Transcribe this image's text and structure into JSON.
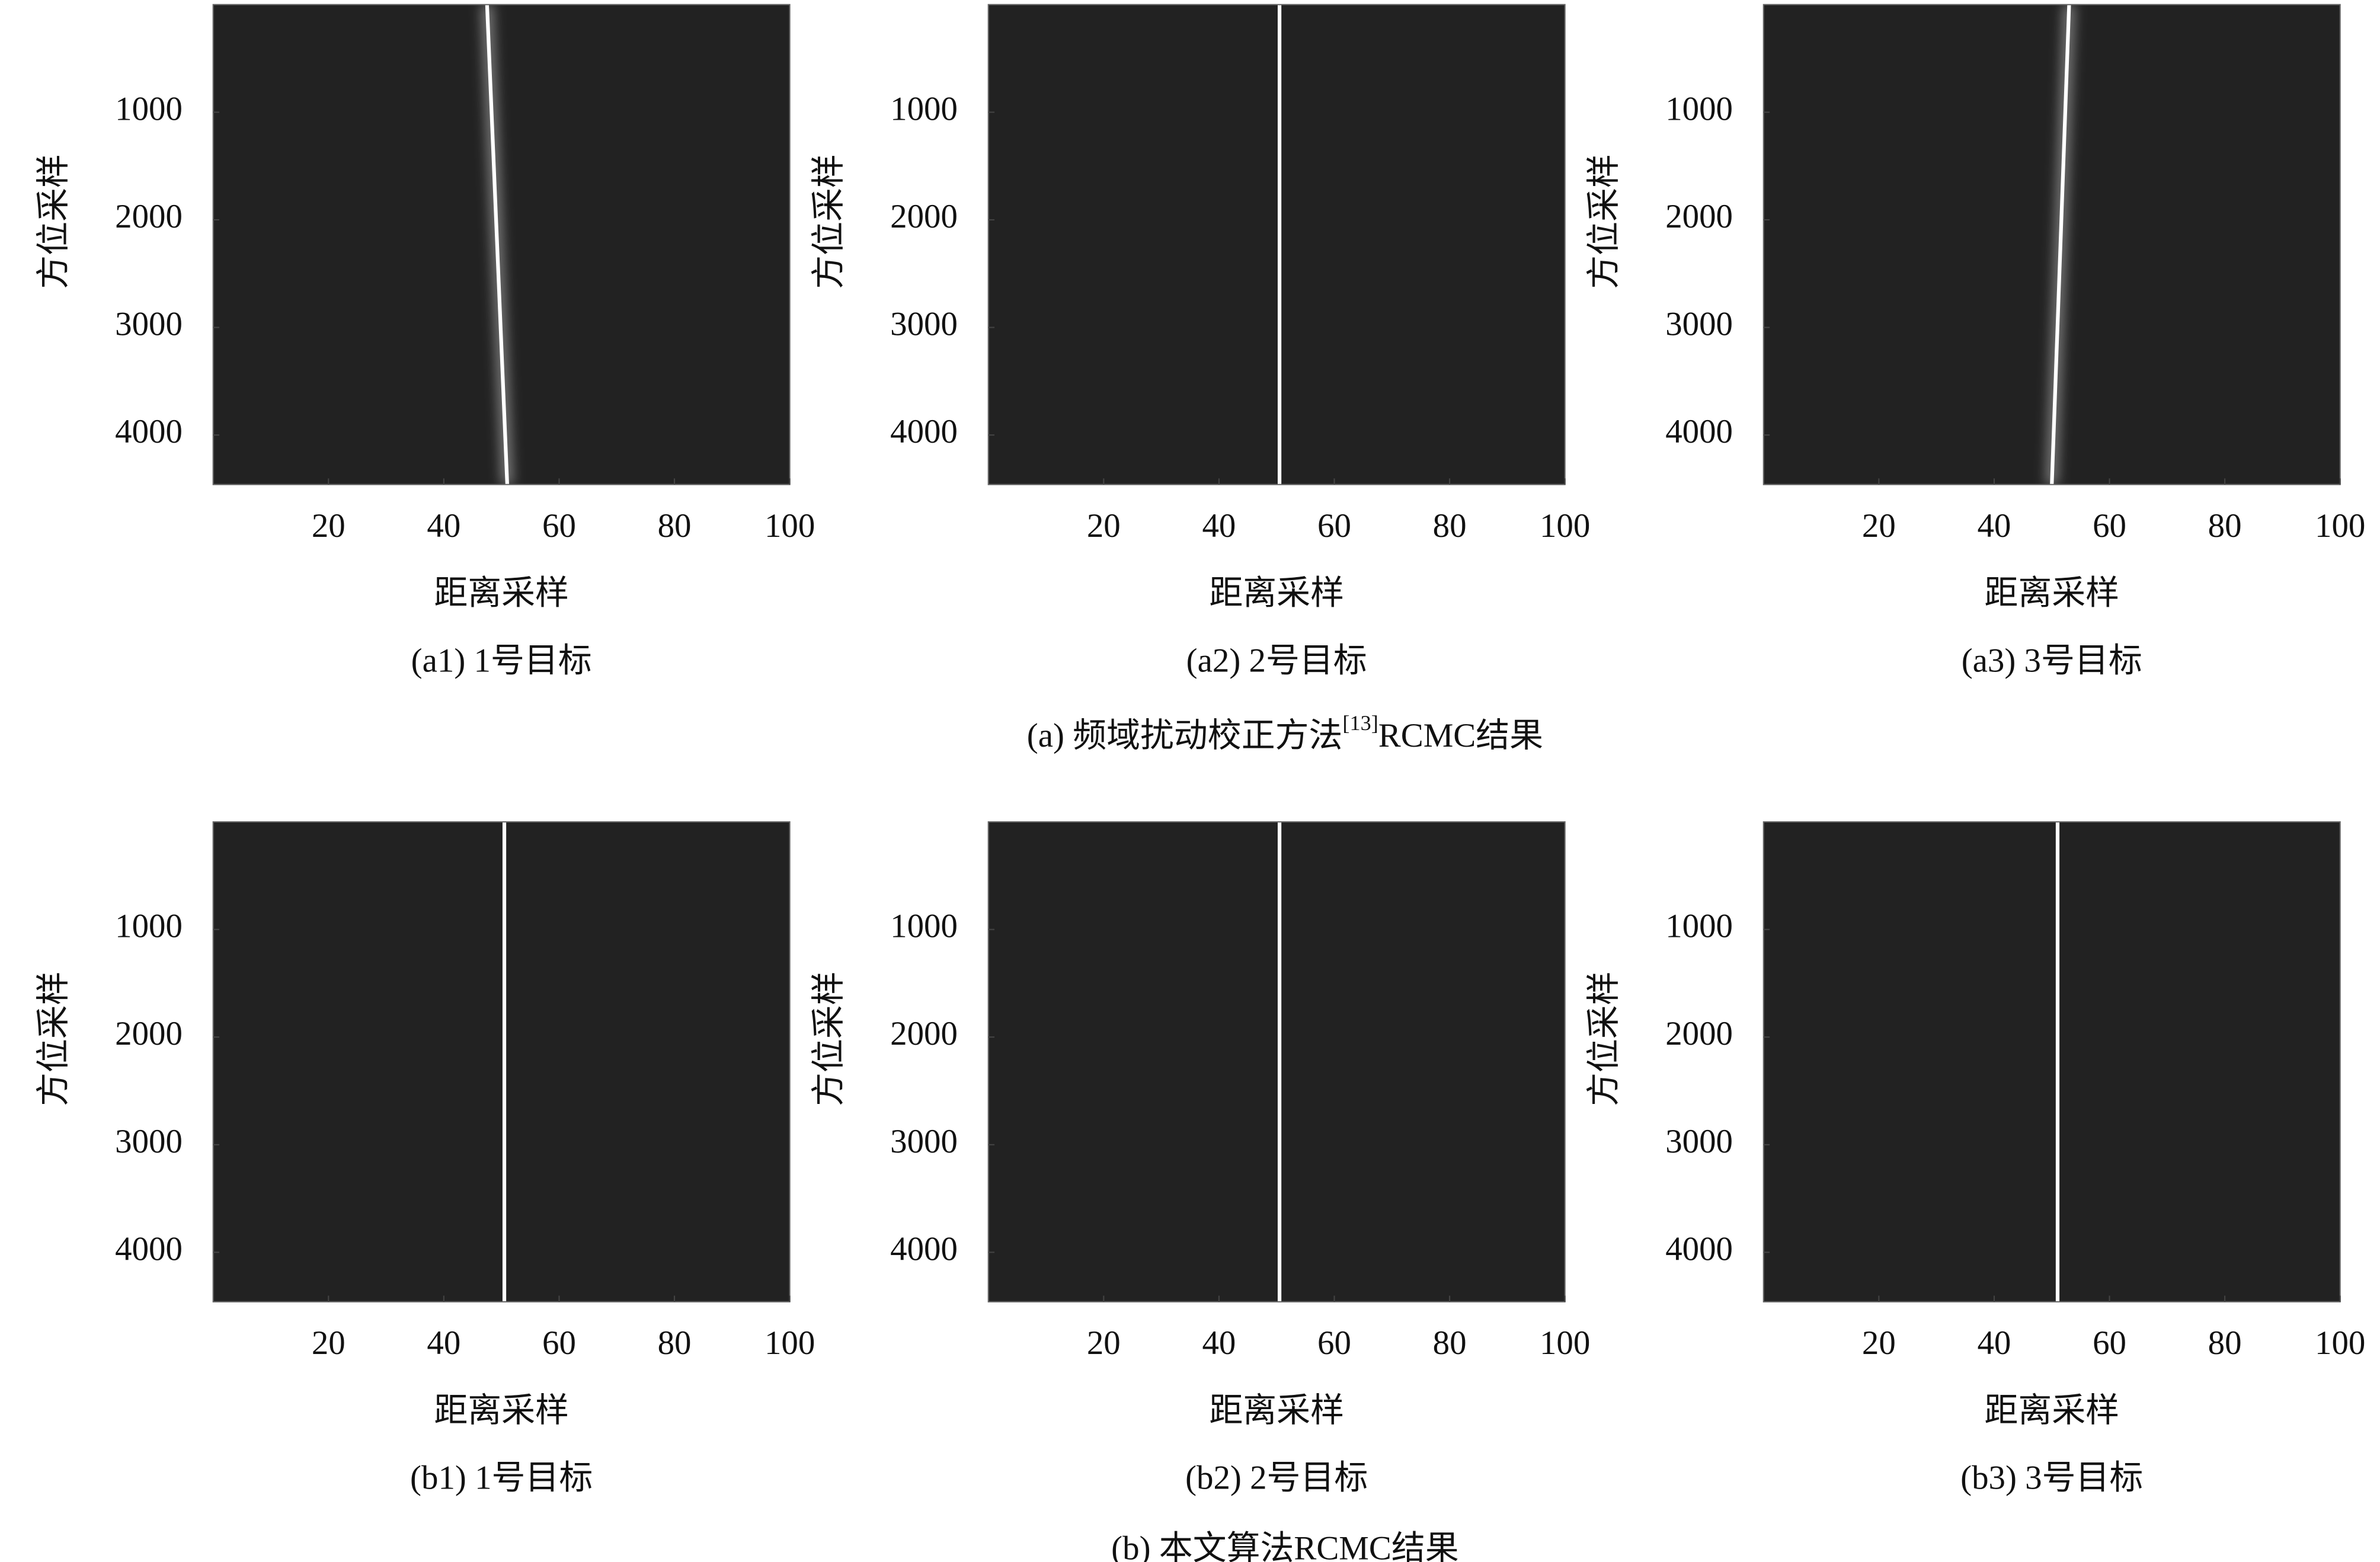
{
  "chart_data": [
    {
      "type": "image",
      "title": "(a1) 1号目标",
      "xlabel": "距离采样",
      "ylabel": "方位采样",
      "xlim": [
        0,
        100
      ],
      "ylim": [
        0,
        4460
      ],
      "xticks": [
        20,
        40,
        60,
        80,
        100
      ],
      "yticks": [
        1000,
        2000,
        3000,
        4000
      ],
      "background": "#222222",
      "color": "#ffffff",
      "x": [
        47.5,
        51
      ],
      "y": [
        0,
        4460
      ]
    },
    {
      "type": "image",
      "title": "(a2) 2号目标",
      "xlabel": "距离采样",
      "ylabel": "方位采样",
      "xlim": [
        0,
        100
      ],
      "ylim": [
        0,
        4460
      ],
      "xticks": [
        20,
        40,
        60,
        80,
        100
      ],
      "yticks": [
        1000,
        2000,
        3000,
        4000
      ],
      "background": "#222222",
      "color": "#ffffff",
      "x": [
        50.5,
        50.5
      ],
      "y": [
        0,
        4460
      ]
    },
    {
      "type": "image",
      "title": "(a3) 3号目标",
      "xlabel": "距离采样",
      "ylabel": "方位采样",
      "xlim": [
        0,
        100
      ],
      "ylim": [
        0,
        4460
      ],
      "xticks": [
        20,
        40,
        60,
        80,
        100
      ],
      "yticks": [
        1000,
        2000,
        3000,
        4000
      ],
      "background": "#222222",
      "color": "#ffffff",
      "x": [
        53,
        50
      ],
      "y": [
        0,
        4460
      ]
    },
    {
      "type": "image",
      "title": "(b1) 1号目标",
      "xlabel": "距离采样",
      "ylabel": "方位采样",
      "xlim": [
        0,
        100
      ],
      "ylim": [
        0,
        4460
      ],
      "xticks": [
        20,
        40,
        60,
        80,
        100
      ],
      "yticks": [
        1000,
        2000,
        3000,
        4000
      ],
      "background": "#222222",
      "color": "#ffffff",
      "x": [
        50.5,
        50.5
      ],
      "y": [
        0,
        4460
      ]
    },
    {
      "type": "image",
      "title": "(b2) 2号目标",
      "xlabel": "距离采样",
      "ylabel": "方位采样",
      "xlim": [
        0,
        100
      ],
      "ylim": [
        0,
        4460
      ],
      "xticks": [
        20,
        40,
        60,
        80,
        100
      ],
      "yticks": [
        1000,
        2000,
        3000,
        4000
      ],
      "background": "#222222",
      "color": "#ffffff",
      "x": [
        50.5,
        50.5
      ],
      "y": [
        0,
        4460
      ]
    },
    {
      "type": "image",
      "title": "(b3) 3号目标",
      "xlabel": "距离采样",
      "ylabel": "方位采样",
      "xlim": [
        0,
        100
      ],
      "ylim": [
        0,
        4460
      ],
      "xticks": [
        20,
        40,
        60,
        80,
        100
      ],
      "yticks": [
        1000,
        2000,
        3000,
        4000
      ],
      "background": "#222222",
      "color": "#ffffff",
      "x": [
        51,
        51
      ],
      "y": [
        0,
        4460
      ]
    }
  ],
  "captions": [
    {
      "before": "(a) 频域扰动校正方法",
      "ref": "[13]",
      "after": "RCMC结果"
    },
    {
      "before": "(b) 本文算法RCMC结果"
    }
  ]
}
